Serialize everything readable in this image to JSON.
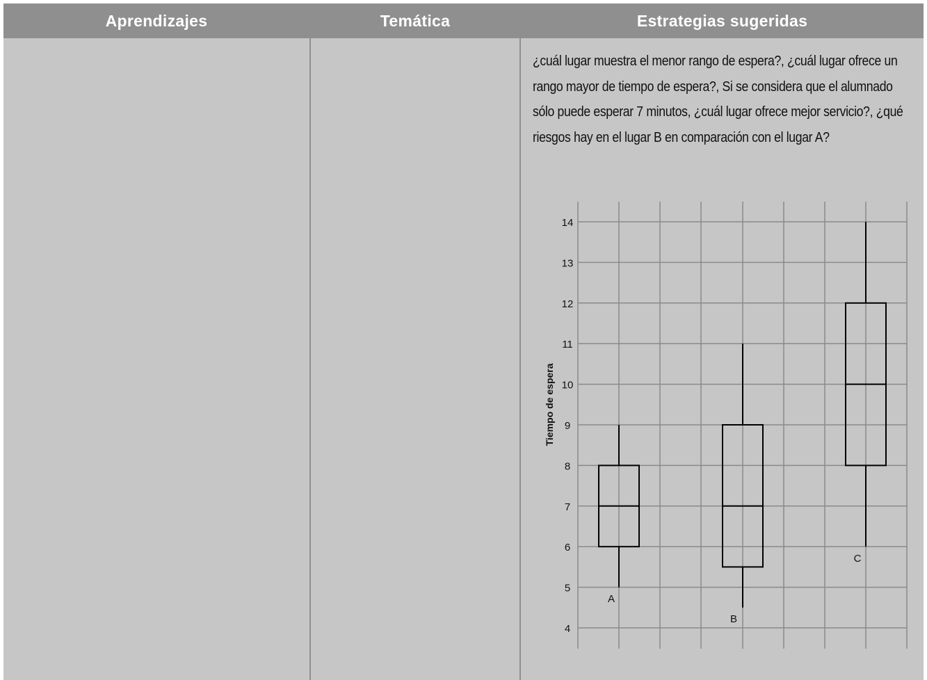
{
  "table": {
    "headers": [
      "Aprendizajes",
      "Temática",
      "Estrategias sugeridas"
    ]
  },
  "strategies": {
    "paragraph": "¿cuál lugar muestra el menor rango de espera?, ¿cuál lugar ofrece un rango mayor de tiempo de espera?, Si se considera que el alumnado sólo puede esperar 7 minutos, ¿cuál lugar ofrece mejor servicio?, ¿qué riesgos hay en el lugar B en comparación con el lugar A?"
  },
  "chart_data": {
    "type": "boxplot",
    "title": "",
    "xlabel": "",
    "ylabel": "Tiempo de espera",
    "ylim": [
      4,
      14
    ],
    "yticks": [
      4,
      5,
      6,
      7,
      8,
      9,
      10,
      11,
      12,
      13,
      14
    ],
    "grid": true,
    "series": [
      {
        "name": "A",
        "min": 5,
        "q1": 6,
        "median": 7,
        "q3": 8,
        "max": 9
      },
      {
        "name": "B",
        "min": 4.5,
        "q1": 5.5,
        "median": 7,
        "q3": 9,
        "max": 11
      },
      {
        "name": "C",
        "min": 6,
        "q1": 8,
        "median": 10,
        "q3": 12,
        "max": 14
      }
    ]
  }
}
